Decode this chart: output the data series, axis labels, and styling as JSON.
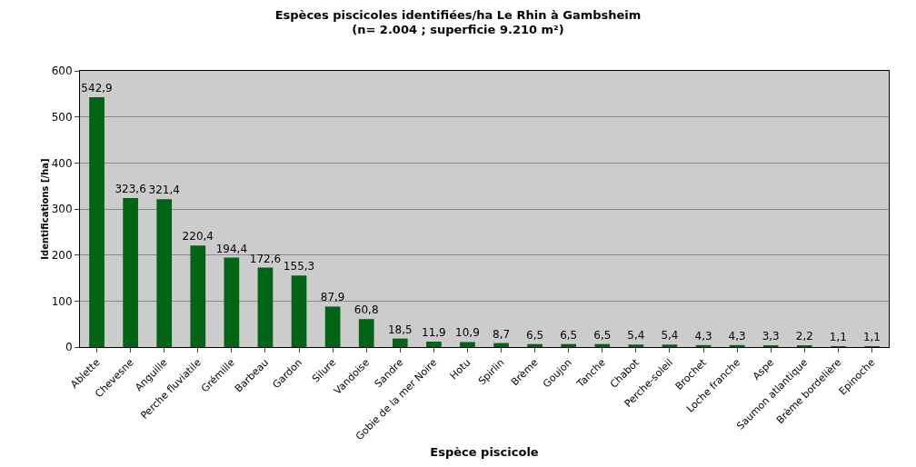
{
  "chart_data": {
    "type": "bar",
    "title": "Espèces piscicoles identifiées/ha Le Rhin à Gambsheim",
    "subtitle": "(n= 2.004 ; superficie 9.210 m²)",
    "xlabel": "Espèce piscicole",
    "ylabel": "Identifications [/ha]",
    "categories": [
      "Ablette",
      "Chevesne",
      "Anguille",
      "Perche fluviatile",
      "Grémille",
      "Barbeau",
      "Gardon",
      "Silure",
      "Vandoise",
      "Sandre",
      "Gobie de la mer Noire",
      "Hotu",
      "Spirlin",
      "Brème",
      "Goujon",
      "Tanche",
      "Chabot",
      "Perche-soleil",
      "Brochet",
      "Loche franche",
      "Aspe",
      "Saumon atlantique",
      "Brème bordelière",
      "Epinoche"
    ],
    "values": [
      542.9,
      323.6,
      321.4,
      220.4,
      194.4,
      172.6,
      155.3,
      87.9,
      60.8,
      18.5,
      11.9,
      10.9,
      8.7,
      6.5,
      6.5,
      6.5,
      5.4,
      5.4,
      4.3,
      4.3,
      3.3,
      2.2,
      1.1,
      1.1
    ],
    "value_labels": [
      "542,9",
      "323,6",
      "321,4",
      "220,4",
      "194,4",
      "172,6",
      "155,3",
      "87,9",
      "60,8",
      "18,5",
      "11,9",
      "10,9",
      "8,7",
      "6,5",
      "6,5",
      "6,5",
      "5,4",
      "5,4",
      "4,3",
      "4,3",
      "3,3",
      "2,2",
      "1,1",
      "1,1"
    ],
    "color": "#006414",
    "ylim": [
      0,
      600
    ],
    "yticks": [
      0,
      100,
      200,
      300,
      400,
      500,
      600
    ],
    "grid": "y",
    "legend": false
  }
}
